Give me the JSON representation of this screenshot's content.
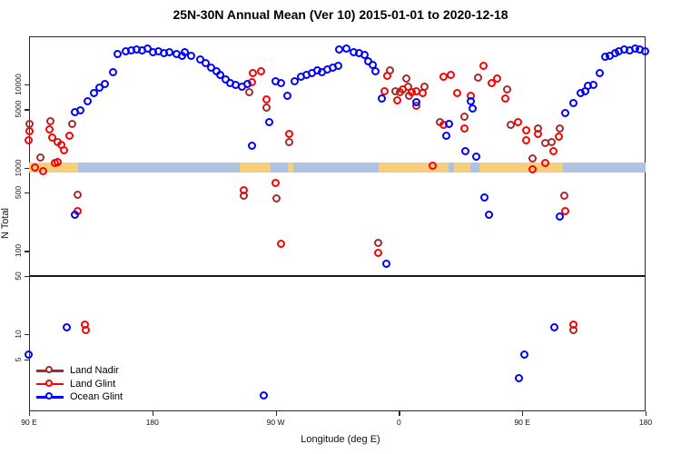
{
  "chart_data": {
    "type": "scatter",
    "title": "25N-30N Annual Mean (Ver 10)   2015-01-01 to 2020-12-18",
    "xlabel": "Longitude (deg E)",
    "ylabel": "N Total",
    "y_scale": "log10",
    "y_range_approx": [
      1,
      40000
    ],
    "x_axis_note": "axis spans 450 degrees of longitude: 90E -> 180 -> 90W -> 0 -> 90E -> 180; deg value below is degrees east of the 90E left edge",
    "x_ticks": [
      {
        "deg": 0,
        "label": "90 E"
      },
      {
        "deg": 90,
        "label": "180"
      },
      {
        "deg": 180,
        "label": "90 W"
      },
      {
        "deg": 270,
        "label": "0"
      },
      {
        "deg": 360,
        "label": "90 E"
      },
      {
        "deg": 450,
        "label": "180"
      }
    ],
    "y_ticks": [
      {
        "value": 5,
        "label": "5"
      },
      {
        "value": 10,
        "label": "10"
      },
      {
        "value": 50,
        "label": "50"
      },
      {
        "value": 100,
        "label": "100"
      },
      {
        "value": 500,
        "label": "500"
      },
      {
        "value": 1000,
        "label": "1000"
      },
      {
        "value": 5000,
        "label": "5000"
      },
      {
        "value": 10000,
        "label": "10000"
      }
    ],
    "reference_line_n": 50,
    "coast_band": {
      "description": "thin world-map strip (land/ocean at 25N-30N) drawn across the plot at N = 1000",
      "center_n": 1000,
      "land_color": "#F6CE7C",
      "ocean_color": "#AEC3DF",
      "segments": [
        {
          "deg0": 0,
          "deg1": 36,
          "type": "land"
        },
        {
          "deg0": 36,
          "deg1": 154,
          "type": "ocean"
        },
        {
          "deg0": 154,
          "deg1": 176,
          "type": "land"
        },
        {
          "deg0": 176,
          "deg1": 189,
          "type": "ocean"
        },
        {
          "deg0": 189,
          "deg1": 193,
          "type": "land"
        },
        {
          "deg0": 193,
          "deg1": 255,
          "type": "ocean"
        },
        {
          "deg0": 255,
          "deg1": 306,
          "type": "land"
        },
        {
          "deg0": 306,
          "deg1": 310,
          "type": "ocean"
        },
        {
          "deg0": 310,
          "deg1": 322,
          "type": "land"
        },
        {
          "deg0": 322,
          "deg1": 329,
          "type": "ocean"
        },
        {
          "deg0": 329,
          "deg1": 390,
          "type": "land"
        },
        {
          "deg0": 390,
          "deg1": 450,
          "type": "ocean"
        }
      ]
    },
    "series": [
      {
        "name": "Land Nadir",
        "color": "#A52A2A",
        "points": [
          [
            1,
            3300
          ],
          [
            9,
            1300
          ],
          [
            16,
            3550
          ],
          [
            21,
            2000
          ],
          [
            32,
            3300
          ],
          [
            36,
            460
          ],
          [
            157,
            455
          ],
          [
            161,
            7900
          ],
          [
            174,
            5150
          ],
          [
            181,
            420
          ],
          [
            190,
            1990
          ],
          [
            255,
            123
          ],
          [
            264,
            14600
          ],
          [
            268,
            8100
          ],
          [
            271,
            8000
          ],
          [
            276,
            11400
          ],
          [
            277,
            9100
          ],
          [
            278,
            7100
          ],
          [
            283,
            5450
          ],
          [
            289,
            9100
          ],
          [
            300,
            3470
          ],
          [
            318,
            4030
          ],
          [
            328,
            11800
          ],
          [
            349,
            8500
          ],
          [
            352,
            3200
          ],
          [
            368,
            1280
          ],
          [
            372,
            2930
          ],
          [
            377,
            1950
          ],
          [
            382,
            2000
          ],
          [
            388,
            2930
          ],
          [
            391,
            455
          ],
          [
            398,
            11
          ]
        ]
      },
      {
        "name": "Land Glint",
        "color": "#FF0000",
        "points": [
          [
            0,
            2100
          ],
          [
            1,
            2700
          ],
          [
            5,
            1000
          ],
          [
            11,
            890
          ],
          [
            15,
            2840
          ],
          [
            17,
            2270
          ],
          [
            19,
            1120
          ],
          [
            21,
            1150
          ],
          [
            24,
            1870
          ],
          [
            26,
            1600
          ],
          [
            30,
            2350
          ],
          [
            36,
            300
          ],
          [
            41,
            13
          ],
          [
            42,
            11
          ],
          [
            157,
            525
          ],
          [
            163,
            10400
          ],
          [
            164,
            13400
          ],
          [
            170,
            14100
          ],
          [
            174,
            6400
          ],
          [
            180,
            640
          ],
          [
            184,
            120
          ],
          [
            190,
            2500
          ],
          [
            255,
            93
          ],
          [
            260,
            8100
          ],
          [
            262,
            12300
          ],
          [
            269,
            6300
          ],
          [
            273,
            8500
          ],
          [
            280,
            8000
          ],
          [
            283,
            8200
          ],
          [
            288,
            7800
          ],
          [
            295,
            1040
          ],
          [
            303,
            3200
          ],
          [
            303,
            12000
          ],
          [
            308,
            12700
          ],
          [
            313,
            7800
          ],
          [
            318,
            2900
          ],
          [
            323,
            7100
          ],
          [
            332,
            16300
          ],
          [
            338,
            10100
          ],
          [
            342,
            11400
          ],
          [
            348,
            6600
          ],
          [
            357,
            3470
          ],
          [
            363,
            2770
          ],
          [
            363,
            2100
          ],
          [
            368,
            940
          ],
          [
            372,
            2500
          ],
          [
            377,
            1120
          ],
          [
            383,
            1570
          ],
          [
            387,
            2300
          ],
          [
            392,
            295
          ],
          [
            398,
            13
          ]
        ]
      },
      {
        "name": "Ocean Glint",
        "color": "#0000FF",
        "points": [
          [
            0,
            5.7
          ],
          [
            28,
            12
          ],
          [
            34,
            270
          ],
          [
            34,
            4560
          ],
          [
            38,
            4800
          ],
          [
            43,
            6200
          ],
          [
            48,
            7700
          ],
          [
            52,
            9000
          ],
          [
            56,
            9900
          ],
          [
            62,
            13700
          ],
          [
            65,
            22700
          ],
          [
            71,
            24500
          ],
          [
            75,
            25400
          ],
          [
            79,
            25900
          ],
          [
            83,
            25400
          ],
          [
            87,
            26600
          ],
          [
            91,
            24000
          ],
          [
            95,
            24500
          ],
          [
            99,
            23300
          ],
          [
            103,
            24000
          ],
          [
            108,
            22800
          ],
          [
            112,
            21700
          ],
          [
            114,
            24000
          ],
          [
            119,
            21700
          ],
          [
            125,
            19500
          ],
          [
            129,
            17700
          ],
          [
            133,
            15600
          ],
          [
            137,
            14100
          ],
          [
            140,
            12800
          ],
          [
            144,
            11200
          ],
          [
            147,
            10200
          ],
          [
            151,
            9600
          ],
          [
            156,
            9200
          ],
          [
            160,
            9900
          ],
          [
            163,
            1800
          ],
          [
            172,
            1.8
          ],
          [
            176,
            3500
          ],
          [
            180,
            10800
          ],
          [
            184,
            10100
          ],
          [
            189,
            7100
          ],
          [
            194,
            10800
          ],
          [
            199,
            12000
          ],
          [
            203,
            12700
          ],
          [
            207,
            13400
          ],
          [
            211,
            14600
          ],
          [
            214,
            13900
          ],
          [
            218,
            15000
          ],
          [
            222,
            15400
          ],
          [
            226,
            16300
          ],
          [
            227,
            25900
          ],
          [
            232,
            26200
          ],
          [
            237,
            24000
          ],
          [
            241,
            23300
          ],
          [
            245,
            22200
          ],
          [
            248,
            18700
          ],
          [
            251,
            16900
          ],
          [
            253,
            14200
          ],
          [
            258,
            6650
          ],
          [
            261,
            69
          ],
          [
            283,
            6000
          ],
          [
            305,
            2360
          ],
          [
            307,
            3300
          ],
          [
            319,
            1550
          ],
          [
            323,
            6200
          ],
          [
            324,
            5000
          ],
          [
            327,
            1340
          ],
          [
            333,
            430
          ],
          [
            336,
            270
          ],
          [
            358,
            2.9
          ],
          [
            362,
            5.6
          ],
          [
            384,
            12
          ],
          [
            388,
            255
          ],
          [
            392,
            4400
          ],
          [
            398,
            5900
          ],
          [
            403,
            7700
          ],
          [
            406,
            8100
          ],
          [
            408,
            9400
          ],
          [
            412,
            9700
          ],
          [
            417,
            13400
          ],
          [
            421,
            21100
          ],
          [
            424,
            21600
          ],
          [
            428,
            23300
          ],
          [
            431,
            24500
          ],
          [
            435,
            25900
          ],
          [
            439,
            25300
          ],
          [
            443,
            26500
          ],
          [
            446,
            25900
          ],
          [
            450,
            24500
          ]
        ]
      }
    ],
    "legend_position": "bottom-left"
  }
}
